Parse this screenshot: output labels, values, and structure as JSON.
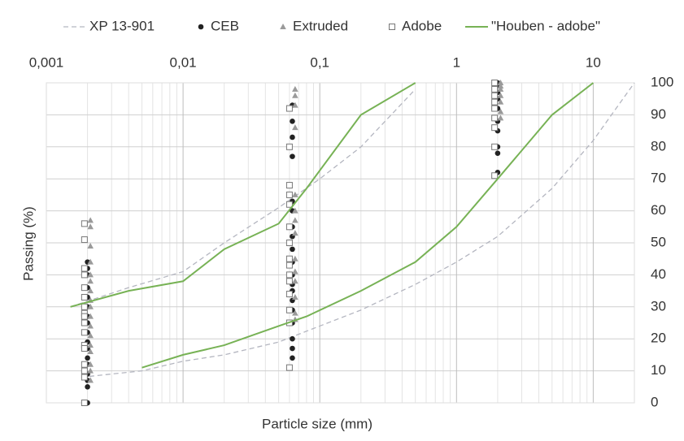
{
  "chart_data": {
    "type": "line",
    "xlabel": "Particle size (mm)",
    "ylabel": "Passing (%)",
    "xscale": "log",
    "xlim": [
      0.001,
      20
    ],
    "xticks": [
      {
        "value": 0.001,
        "label": "0,001"
      },
      {
        "value": 0.01,
        "label": "0,01"
      },
      {
        "value": 0.1,
        "label": "0,1"
      },
      1,
      10
    ],
    "ylim": [
      0,
      100
    ],
    "yticks": [
      0,
      10,
      20,
      30,
      40,
      50,
      60,
      70,
      80,
      90,
      100
    ],
    "grid": true,
    "minor_grid": true,
    "legend": "top",
    "series": [
      {
        "name": "XP 13-901",
        "color": "#b4b6c0",
        "line": "dashed",
        "x": [
          0.0015,
          0.004,
          0.01,
          0.02,
          0.05,
          0.1,
          0.2,
          0.5,
          null,
          0.0018,
          0.005,
          0.01,
          0.02,
          0.05,
          0.1,
          0.2,
          0.5,
          1,
          2,
          5,
          10,
          20
        ],
        "values": [
          30,
          36,
          41,
          50,
          61,
          70,
          80,
          98,
          null,
          8,
          10,
          13,
          15,
          19,
          24,
          29,
          37,
          44,
          52,
          67,
          82,
          100
        ]
      },
      {
        "name": "CEB",
        "color": "#222222",
        "marker": "circle",
        "x": [
          0.002,
          0.002,
          0.002,
          0.002,
          0.002,
          0.002,
          0.002,
          0.002,
          0.002,
          0.002,
          0.002,
          0.002,
          0.002,
          0.002,
          0.002,
          0.002,
          0.002,
          0.063,
          0.063,
          0.063,
          0.063,
          0.063,
          0.063,
          0.063,
          0.063,
          0.063,
          0.063,
          0.063,
          0.063,
          0.063,
          0.063,
          0.063,
          0.063,
          0.063,
          0.063,
          0.063,
          2,
          2,
          2,
          2,
          2,
          2,
          2,
          2,
          2,
          2
        ],
        "values": [
          44,
          42,
          40,
          36,
          33,
          30,
          27,
          25,
          22,
          19,
          17,
          14,
          12,
          9,
          7,
          5,
          0,
          93,
          88,
          83,
          77,
          63,
          60,
          55,
          52,
          48,
          44,
          40,
          37,
          35,
          32,
          29,
          25,
          20,
          17,
          14,
          100,
          99,
          97,
          95,
          92,
          88,
          85,
          80,
          78,
          72
        ]
      },
      {
        "name": "Extruded",
        "color": "#9a9a9a",
        "marker": "triangle",
        "x": [
          0.0021,
          0.0021,
          0.0021,
          0.0021,
          0.0021,
          0.0021,
          0.0021,
          0.0021,
          0.0021,
          0.0021,
          0.0021,
          0.0021,
          0.0021,
          0.0021,
          0.0021,
          0.0021,
          0.0021,
          0.066,
          0.066,
          0.066,
          0.066,
          0.066,
          0.066,
          0.066,
          0.066,
          0.066,
          0.066,
          0.066,
          0.066,
          0.066,
          0.066,
          2.1,
          2.1,
          2.1,
          2.1,
          2.1,
          2.1,
          2.1
        ],
        "values": [
          57,
          55,
          49,
          44,
          40,
          38,
          35,
          32,
          30,
          27,
          24,
          21,
          18,
          16,
          12,
          10,
          7,
          98,
          96,
          93,
          86,
          65,
          60,
          57,
          53,
          45,
          41,
          38,
          33,
          28,
          26,
          100,
          99,
          98,
          96,
          94,
          91,
          89
        ]
      },
      {
        "name": "Adobe",
        "color": "#777777",
        "marker": "square",
        "x": [
          0.0019,
          0.0019,
          0.0019,
          0.0019,
          0.0019,
          0.0019,
          0.0019,
          0.0019,
          0.0019,
          0.0019,
          0.0019,
          0.0019,
          0.0019,
          0.0019,
          0.0019,
          0.0019,
          0.0019,
          0.06,
          0.06,
          0.06,
          0.06,
          0.06,
          0.06,
          0.06,
          0.06,
          0.06,
          0.06,
          0.06,
          0.06,
          0.06,
          0.06,
          0.06,
          1.9,
          1.9,
          1.9,
          1.9,
          1.9,
          1.9,
          1.9,
          1.9,
          1.9
        ],
        "values": [
          56,
          51,
          42,
          40,
          36,
          33,
          30,
          28,
          27,
          25,
          22,
          18,
          17,
          12,
          10,
          8,
          0,
          92,
          80,
          68,
          65,
          62,
          55,
          50,
          45,
          43,
          40,
          38,
          34,
          29,
          25,
          11,
          100,
          98,
          96,
          94,
          92,
          89,
          86,
          80,
          71
        ]
      },
      {
        "name": "\"Houben - adobe\"",
        "color": "#77b255",
        "line": "solid",
        "x": [
          0.0015,
          0.004,
          0.01,
          0.02,
          0.05,
          0.08,
          0.2,
          0.5,
          null,
          0.005,
          0.01,
          0.02,
          0.05,
          0.08,
          0.2,
          0.5,
          1,
          2,
          5,
          10
        ],
        "values": [
          30,
          35,
          38,
          48,
          56,
          67,
          90,
          100,
          null,
          11,
          15,
          18,
          24,
          27,
          35,
          44,
          55,
          70,
          90,
          100
        ]
      }
    ]
  }
}
